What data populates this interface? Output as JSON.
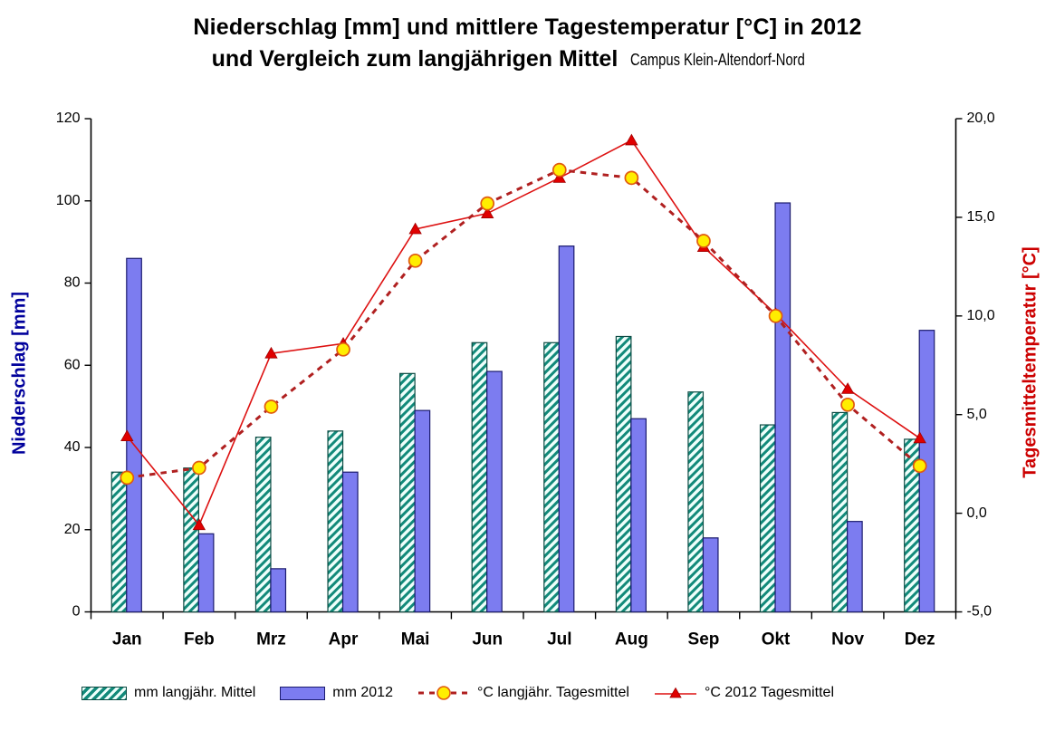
{
  "title": {
    "line1": "Niederschlag [mm] und mittlere Tagestemperatur [°C] in 2012",
    "line2": "und Vergleich zum langjährigen Mittel",
    "subtitle": "Campus Klein-Altendorf-Nord"
  },
  "chart_data": {
    "type": "bar",
    "subtype": "combo bar + line, dual axis",
    "categories": [
      "Jan",
      "Feb",
      "Mrz",
      "Apr",
      "Mai",
      "Jun",
      "Jul",
      "Aug",
      "Sep",
      "Okt",
      "Nov",
      "Dez"
    ],
    "series": [
      {
        "name": "mm langjähr. Mittel",
        "type": "bar",
        "axis": "left",
        "style": "teal-hatched",
        "values": [
          34,
          35,
          42.5,
          44,
          58,
          65.5,
          65.5,
          67,
          53.5,
          45.5,
          48.5,
          42
        ]
      },
      {
        "name": "mm 2012",
        "type": "bar",
        "axis": "left",
        "style": "solid-blue",
        "values": [
          86,
          19,
          10.5,
          34,
          49,
          58.5,
          89,
          47,
          18,
          99.5,
          22,
          68.5
        ]
      },
      {
        "name": "°C langjähr. Tagesmittel",
        "type": "line",
        "axis": "right",
        "style": "dashed-darkred-yellow-circle-markers",
        "values": [
          1.8,
          2.3,
          5.4,
          8.3,
          12.8,
          15.7,
          17.4,
          17.0,
          13.8,
          10.0,
          5.5,
          2.4
        ]
      },
      {
        "name": "°C 2012 Tagesmittel",
        "type": "line",
        "axis": "right",
        "style": "solid-red-triangle-markers",
        "values": [
          3.9,
          -0.6,
          8.1,
          8.6,
          14.4,
          15.2,
          17.0,
          18.9,
          13.5,
          10.1,
          6.3,
          3.8
        ]
      }
    ],
    "axis_left": {
      "label": "Niederschlag [mm]",
      "min": 0,
      "max": 120,
      "tick_values": [
        0,
        20,
        40,
        60,
        80,
        100,
        120
      ],
      "tick_labels": [
        "0",
        "20",
        "40",
        "60",
        "80",
        "100",
        "120"
      ]
    },
    "axis_right": {
      "label": "Tagesmitteltemperatur [°C]",
      "min": -5,
      "max": 20,
      "tick_values": [
        -5,
        0,
        5,
        10,
        15,
        20
      ],
      "tick_labels": [
        "-5,0",
        "0,0",
        "5,0",
        "10,0",
        "15,0",
        "20,0"
      ]
    },
    "legend_position": "bottom",
    "grid": false
  },
  "colors": {
    "bar_2012_fill": "#7c7cf0",
    "bar_2012_border": "#1b1b6e",
    "hatch_stripe": "#128a7a",
    "hatch_bg": "#eefffb",
    "hatch_border": "#0b4a42",
    "line_longterm": "#b02020",
    "line_2012": "#dd1111",
    "marker_circle_fill": "#ffee00",
    "marker_circle_border": "#e05a10",
    "marker_triangle_fill": "#e00000",
    "axis_title_left": "#00009c",
    "axis_title_right": "#cc0000",
    "text": "#000000"
  }
}
